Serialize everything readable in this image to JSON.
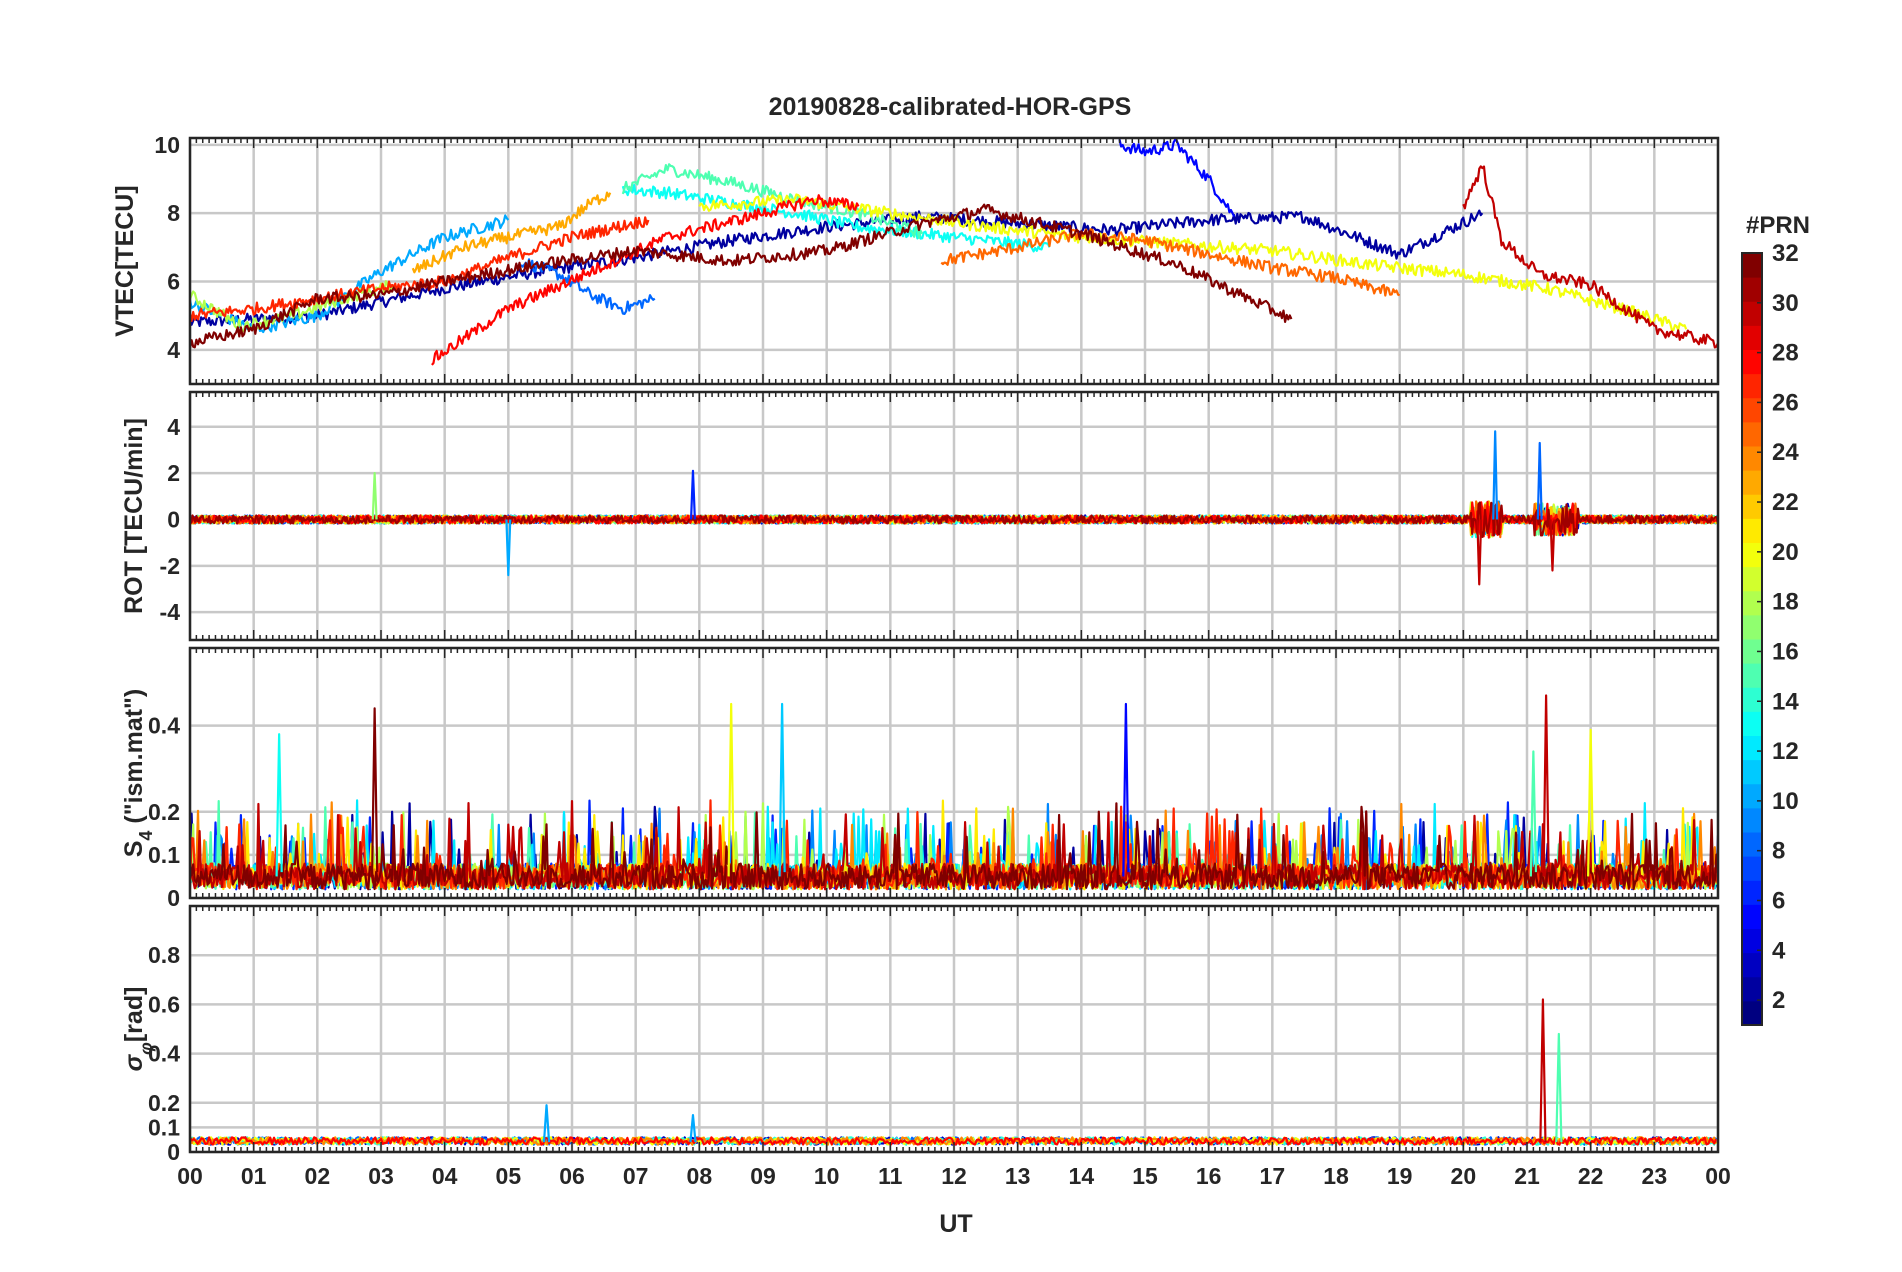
{
  "chart_data": {
    "title": "20190828-calibrated-HOR-GPS",
    "xlabel": "UT",
    "x_tick_labels": [
      "00",
      "01",
      "02",
      "03",
      "04",
      "05",
      "06",
      "07",
      "08",
      "09",
      "10",
      "11",
      "12",
      "13",
      "14",
      "15",
      "16",
      "17",
      "18",
      "19",
      "20",
      "21",
      "22",
      "23",
      "00"
    ],
    "x_range_hours": [
      0,
      24
    ],
    "colorbar": {
      "title": "#PRN",
      "range": [
        1,
        32
      ],
      "tick_labels": [
        "2",
        "4",
        "6",
        "8",
        "10",
        "12",
        "14",
        "16",
        "18",
        "20",
        "22",
        "24",
        "26",
        "28",
        "30",
        "32"
      ],
      "colormap": "jet"
    },
    "panels": [
      {
        "id": "vtec",
        "type": "line",
        "ylabel": "VTEC[TECU]",
        "ylim": [
          3,
          10.2
        ],
        "y_tick_labels": [
          "4",
          "6",
          "8",
          "10"
        ],
        "series": [
          {
            "name": "PRN 2",
            "prn": 2,
            "x": [
              0.0,
              2,
              4,
              5.5,
              7,
              8.5,
              10,
              11.5,
              13,
              14.5,
              16,
              17.5,
              19,
              20.3
            ],
            "y": [
              4.8,
              5.0,
              5.8,
              6.3,
              6.7,
              7.2,
              7.6,
              7.9,
              7.7,
              7.5,
              7.8,
              7.9,
              6.8,
              8.0
            ]
          },
          {
            "name": "PRN 5",
            "prn": 5,
            "x": [
              14.6,
              15.0,
              15.5,
              16.0,
              16.4
            ],
            "y": [
              10.0,
              9.8,
              10.0,
              9.0,
              7.9
            ]
          },
          {
            "name": "PRN 8",
            "prn": 8,
            "x": [
              5.2,
              5.8,
              6.3,
              6.8,
              7.3
            ],
            "y": [
              6.6,
              6.2,
              5.6,
              5.2,
              5.5
            ]
          },
          {
            "name": "PRN 10",
            "prn": 10,
            "x": [
              0.0,
              1,
              2,
              3,
              4,
              5
            ],
            "y": [
              5.4,
              4.6,
              5.0,
              6.3,
              7.3,
              7.8
            ]
          },
          {
            "name": "PRN 13",
            "prn": 13,
            "x": [
              6.8,
              7.5,
              8.5,
              9.5,
              10.5,
              11.5,
              12.5,
              13.5
            ],
            "y": [
              8.7,
              8.6,
              8.3,
              8.0,
              7.6,
              7.4,
              7.2,
              7.0
            ]
          },
          {
            "name": "PRN 15",
            "prn": 15,
            "x": [
              6.8,
              7.5,
              8.5,
              9.5,
              10.5,
              11.5
            ],
            "y": [
              8.7,
              9.3,
              8.9,
              8.4,
              8.0,
              7.4
            ]
          },
          {
            "name": "PRN 18",
            "prn": 18,
            "x": [
              0.0,
              0.8,
              1.6,
              2.4,
              3.2
            ],
            "y": [
              5.6,
              4.7,
              5.0,
              5.5,
              5.9
            ]
          },
          {
            "name": "PRN 20",
            "prn": 20,
            "x": [
              8.0,
              9.5,
              11,
              12.5,
              14,
              15.5,
              17,
              18.5,
              20,
              21.3,
              22.5,
              23.5
            ],
            "y": [
              8.2,
              8.4,
              8.0,
              7.6,
              7.3,
              7.1,
              6.9,
              6.5,
              6.2,
              5.8,
              5.2,
              4.6
            ]
          },
          {
            "name": "PRN 23",
            "prn": 23,
            "x": [
              3.5,
              4.3,
              5.0,
              5.8,
              6.3,
              6.6
            ],
            "y": [
              6.3,
              7.0,
              7.3,
              7.6,
              8.3,
              8.6
            ]
          },
          {
            "name": "PRN 25",
            "prn": 25,
            "x": [
              11.8,
              13,
              14,
              15,
              16,
              17,
              18,
              19
            ],
            "y": [
              6.6,
              7.0,
              7.4,
              7.2,
              6.8,
              6.4,
              6.1,
              5.6
            ]
          },
          {
            "name": "PRN 27",
            "prn": 27,
            "x": [
              0.0,
              1,
              2,
              3,
              4,
              5,
              6,
              7.2
            ],
            "y": [
              5.0,
              5.2,
              5.5,
              5.8,
              6.0,
              6.7,
              7.3,
              7.8
            ]
          },
          {
            "name": "PRN 28",
            "prn": 28,
            "x": [
              3.8,
              5.0,
              6.3,
              7.5,
              8.8,
              9.8,
              10.5
            ],
            "y": [
              3.7,
              5.2,
              6.3,
              7.3,
              7.9,
              8.4,
              8.2
            ]
          },
          {
            "name": "PRN 30",
            "prn": 30,
            "x": [
              20.0,
              20.3,
              20.6,
              21.2,
              22,
              23,
              24
            ],
            "y": [
              8.2,
              9.4,
              7.2,
              6.2,
              5.9,
              4.6,
              4.2
            ]
          },
          {
            "name": "PRN 32",
            "prn": 32,
            "x": [
              0.0,
              1,
              2,
              3,
              4,
              5.5,
              7,
              8.5,
              10,
              11.5,
              12.5,
              14,
              15.5,
              17.3
            ],
            "y": [
              4.2,
              4.6,
              5.5,
              5.6,
              6.0,
              6.5,
              6.9,
              6.6,
              6.9,
              7.7,
              8.1,
              7.4,
              6.5,
              4.9
            ]
          }
        ]
      },
      {
        "id": "rot",
        "type": "line",
        "ylabel": "ROT [TECU/min]",
        "ylim": [
          -5.2,
          5.5
        ],
        "y_tick_labels": [
          "-4",
          "-2",
          "0",
          "2",
          "4"
        ],
        "series_note": "Near-zero fluctuations all day (about ±0.5); bursts around 20.2–20.5 UT (-2.8 to 3.8) and 21.2–21.6 UT (-2.2 to 3.3).",
        "bursts": [
          {
            "prn": 10,
            "x": [
              5.0
            ],
            "y": [
              -2.4
            ]
          },
          {
            "prn": 6,
            "x": [
              7.9
            ],
            "y": [
              2.1
            ]
          },
          {
            "prn": 17,
            "x": [
              2.9
            ],
            "y": [
              2.0
            ]
          },
          {
            "prn": 9,
            "x": [
              20.5
            ],
            "y": [
              3.8
            ]
          },
          {
            "prn": 30,
            "x": [
              20.25
            ],
            "y": [
              -2.8
            ]
          },
          {
            "prn": 8,
            "x": [
              21.2
            ],
            "y": [
              3.3
            ]
          },
          {
            "prn": 30,
            "x": [
              21.4
            ],
            "y": [
              -2.2
            ]
          }
        ]
      },
      {
        "id": "s4",
        "type": "line",
        "ylabel": "S4 (\"ism.mat\")",
        "ylabel_main": "S",
        "ylabel_sub": "4",
        "ylabel_rest": " (\"ism.mat\")",
        "ylim": [
          0,
          0.58
        ],
        "y_tick_labels": [
          "0",
          "0.1",
          "0.2",
          "0.4"
        ],
        "series_note": "Background 0.02–0.15 with frequent spikes; maxima about 0.44 near 02.9, 08.5, 09.3, 14.7 and 21.3 UT.",
        "peaks": [
          {
            "prn": 32,
            "x": 2.9,
            "y": 0.44
          },
          {
            "prn": 13,
            "x": 1.4,
            "y": 0.38
          },
          {
            "prn": 20,
            "x": 8.5,
            "y": 0.45
          },
          {
            "prn": 11,
            "x": 9.3,
            "y": 0.45
          },
          {
            "prn": 5,
            "x": 14.7,
            "y": 0.45
          },
          {
            "prn": 30,
            "x": 21.3,
            "y": 0.47
          },
          {
            "prn": 15,
            "x": 21.1,
            "y": 0.34
          },
          {
            "prn": 20,
            "x": 22.0,
            "y": 0.39
          }
        ]
      },
      {
        "id": "sigma_phi",
        "type": "line",
        "ylabel": "σφ[rad]",
        "ylabel_main": "σ",
        "ylabel_sub": "φ",
        "ylabel_rest": "[rad]",
        "ylim": [
          0,
          1.0
        ],
        "y_tick_labels": [
          "0",
          "0.1",
          "0.2",
          "0.4",
          "0.6",
          "0.8"
        ],
        "series_note": "Baseline about 0.03–0.06 all day; spike near 21.3 UT up to 0.62.",
        "peaks": [
          {
            "prn": 30,
            "x": 21.25,
            "y": 0.62
          },
          {
            "prn": 15,
            "x": 21.5,
            "y": 0.48
          },
          {
            "prn": 10,
            "x": 5.6,
            "y": 0.19
          },
          {
            "prn": 10,
            "x": 7.9,
            "y": 0.15
          }
        ]
      }
    ]
  }
}
